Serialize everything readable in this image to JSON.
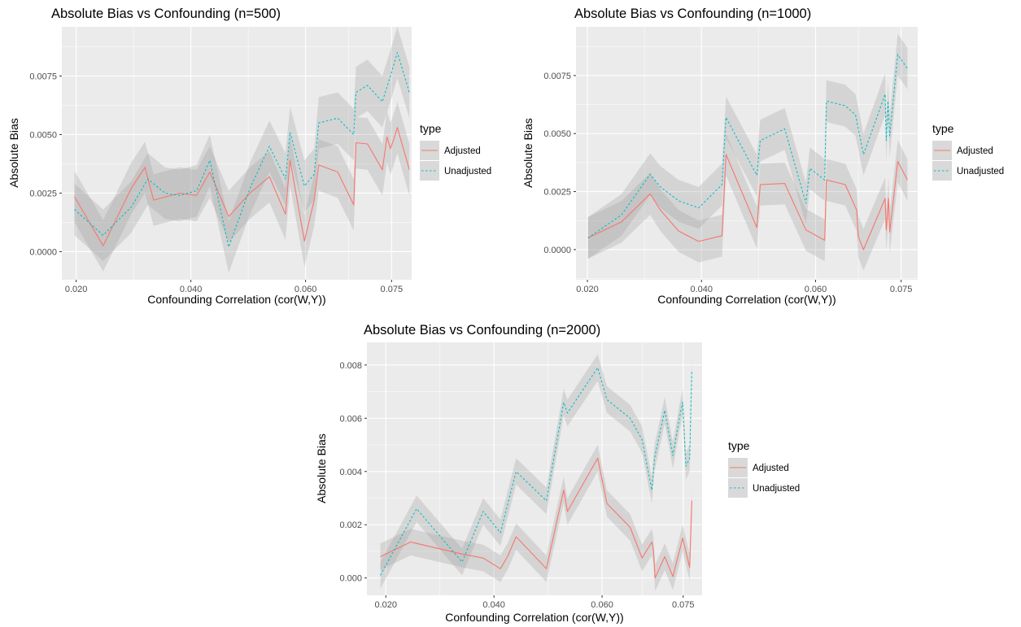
{
  "chart_data": [
    {
      "type": "line",
      "title": "Absolute Bias vs Confounding (n=500)",
      "xlabel": "Confounding Correlation (cor(W,Y))",
      "ylabel": "Absolute Bias",
      "xlim": [
        0.0175,
        0.0785
      ],
      "ylim": [
        -0.0012,
        0.0096
      ],
      "xticks": [
        0.02,
        0.04,
        0.06,
        0.075
      ],
      "xtick_labels": [
        "0.020",
        "0.040",
        "0.060",
        "0.075"
      ],
      "yticks": [
        0.0,
        0.0025,
        0.005,
        0.0075
      ],
      "ytick_labels": [
        "0.0000",
        "0.0025",
        "0.0050",
        "0.0075"
      ],
      "legend": {
        "title": "type",
        "position": "right"
      },
      "grid": true,
      "series": [
        {
          "name": "Adjusted",
          "color": "#F8766D",
          "dash": "solid",
          "band": 0.0011,
          "points": [
            [
              0.0197,
              0.00235
            ],
            [
              0.0247,
              0.00025
            ],
            [
              0.0296,
              0.0027
            ],
            [
              0.032,
              0.0036
            ],
            [
              0.0335,
              0.0022
            ],
            [
              0.038,
              0.0025
            ],
            [
              0.041,
              0.0024
            ],
            [
              0.0433,
              0.0034
            ],
            [
              0.0466,
              0.0015
            ],
            [
              0.0503,
              0.0025
            ],
            [
              0.0537,
              0.0032
            ],
            [
              0.0565,
              0.0016
            ],
            [
              0.0573,
              0.0039
            ],
            [
              0.0598,
              0.00045
            ],
            [
              0.0615,
              0.0022
            ],
            [
              0.0623,
              0.0037
            ],
            [
              0.0656,
              0.0034
            ],
            [
              0.0684,
              0.002
            ],
            [
              0.0688,
              0.00465
            ],
            [
              0.0708,
              0.0046
            ],
            [
              0.0734,
              0.0035
            ],
            [
              0.0742,
              0.0049
            ],
            [
              0.0748,
              0.0044
            ],
            [
              0.0754,
              0.0048
            ],
            [
              0.076,
              0.0053
            ],
            [
              0.0781,
              0.0035
            ]
          ]
        },
        {
          "name": "Unadjusted",
          "color": "#00BFC4",
          "dash": "dotted",
          "band": 0.0011,
          "points": [
            [
              0.0197,
              0.0018
            ],
            [
              0.0247,
              0.0007
            ],
            [
              0.0296,
              0.0019
            ],
            [
              0.0325,
              0.0031
            ],
            [
              0.0355,
              0.0025
            ],
            [
              0.038,
              0.0024
            ],
            [
              0.041,
              0.0026
            ],
            [
              0.0433,
              0.0039
            ],
            [
              0.0466,
              0.0002
            ],
            [
              0.0503,
              0.0027
            ],
            [
              0.0537,
              0.0045
            ],
            [
              0.0565,
              0.0031
            ],
            [
              0.0573,
              0.0051
            ],
            [
              0.0598,
              0.0028
            ],
            [
              0.0615,
              0.0033
            ],
            [
              0.0623,
              0.0055
            ],
            [
              0.0656,
              0.0057
            ],
            [
              0.0684,
              0.005
            ],
            [
              0.0688,
              0.0068
            ],
            [
              0.0708,
              0.0071
            ],
            [
              0.0734,
              0.0064
            ],
            [
              0.0748,
              0.0075
            ],
            [
              0.076,
              0.0085
            ],
            [
              0.0781,
              0.0068
            ]
          ]
        }
      ]
    },
    {
      "type": "line",
      "title": "Absolute Bias vs Confounding (n=1000)",
      "xlabel": "Confounding Correlation (cor(W,Y))",
      "ylabel": "Absolute Bias",
      "xlim": [
        0.018,
        0.0779
      ],
      "ylim": [
        -0.0013,
        0.0096
      ],
      "xticks": [
        0.02,
        0.04,
        0.06,
        0.075
      ],
      "xtick_labels": [
        "0.020",
        "0.040",
        "0.060",
        "0.075"
      ],
      "yticks": [
        0.0,
        0.0025,
        0.005,
        0.0075
      ],
      "ytick_labels": [
        "0.0000",
        "0.0025",
        "0.0050",
        "0.0075"
      ],
      "legend": {
        "title": "type",
        "position": "right"
      },
      "grid": true,
      "series": [
        {
          "name": "Adjusted",
          "color": "#F8766D",
          "dash": "solid",
          "band": 0.0009,
          "points": [
            [
              0.0201,
              0.0005
            ],
            [
              0.026,
              0.0012
            ],
            [
              0.031,
              0.0024
            ],
            [
              0.0328,
              0.0017
            ],
            [
              0.036,
              0.0008
            ],
            [
              0.0395,
              0.00035
            ],
            [
              0.0436,
              0.0006
            ],
            [
              0.0443,
              0.0041
            ],
            [
              0.0497,
              0.00095
            ],
            [
              0.0503,
              0.0028
            ],
            [
              0.0546,
              0.00285
            ],
            [
              0.0583,
              0.00085
            ],
            [
              0.0616,
              0.0004
            ],
            [
              0.0619,
              0.003
            ],
            [
              0.0652,
              0.0028
            ],
            [
              0.0672,
              0.0017
            ],
            [
              0.0675,
              0.00055
            ],
            [
              0.0684,
              0.0
            ],
            [
              0.0722,
              0.0022
            ],
            [
              0.0724,
              0.00085
            ],
            [
              0.0728,
              0.0022
            ],
            [
              0.073,
              0.00075
            ],
            [
              0.0744,
              0.0038
            ],
            [
              0.0761,
              0.003
            ]
          ]
        },
        {
          "name": "Unadjusted",
          "color": "#00BFC4",
          "dash": "dotted",
          "band": 0.0009,
          "points": [
            [
              0.0201,
              0.0005
            ],
            [
              0.026,
              0.0015
            ],
            [
              0.031,
              0.00325
            ],
            [
              0.0328,
              0.0027
            ],
            [
              0.036,
              0.0021
            ],
            [
              0.0395,
              0.0018
            ],
            [
              0.0436,
              0.0028
            ],
            [
              0.0443,
              0.0057
            ],
            [
              0.0497,
              0.0032
            ],
            [
              0.0503,
              0.0047
            ],
            [
              0.0546,
              0.0052
            ],
            [
              0.0583,
              0.002
            ],
            [
              0.059,
              0.0035
            ],
            [
              0.0616,
              0.003
            ],
            [
              0.0619,
              0.0064
            ],
            [
              0.0652,
              0.0062
            ],
            [
              0.067,
              0.0058
            ],
            [
              0.0684,
              0.0041
            ],
            [
              0.0722,
              0.0067
            ],
            [
              0.0724,
              0.0047
            ],
            [
              0.0727,
              0.0064
            ],
            [
              0.073,
              0.0049
            ],
            [
              0.0744,
              0.0084
            ],
            [
              0.0761,
              0.0078
            ]
          ]
        }
      ]
    },
    {
      "type": "line",
      "title": "Absolute Bias vs Confounding (n=2000)",
      "xlabel": "Confounding Correlation (cor(W,Y))",
      "ylabel": "Absolute Bias",
      "xlim": [
        0.0165,
        0.0785
      ],
      "ylim": [
        -0.00065,
        0.00885
      ],
      "xticks": [
        0.02,
        0.04,
        0.06,
        0.075
      ],
      "xtick_labels": [
        "0.020",
        "0.040",
        "0.060",
        "0.075"
      ],
      "yticks": [
        0.0,
        0.002,
        0.004,
        0.006,
        0.008
      ],
      "ytick_labels": [
        "0.000",
        "0.002",
        "0.004",
        "0.006",
        "0.008"
      ],
      "legend": {
        "title": "type",
        "position": "right"
      },
      "grid": true,
      "series": [
        {
          "name": "Adjusted",
          "color": "#F8766D",
          "dash": "solid",
          "band": 0.0005,
          "points": [
            [
              0.019,
              0.0008
            ],
            [
              0.0246,
              0.00135
            ],
            [
              0.0341,
              0.0009
            ],
            [
              0.038,
              0.00075
            ],
            [
              0.0412,
              0.00035
            ],
            [
              0.0425,
              0.0008
            ],
            [
              0.0441,
              0.00155
            ],
            [
              0.0497,
              0.00035
            ],
            [
              0.0529,
              0.0033
            ],
            [
              0.0536,
              0.0025
            ],
            [
              0.0592,
              0.0045
            ],
            [
              0.0609,
              0.0028
            ],
            [
              0.0652,
              0.0019
            ],
            [
              0.0674,
              0.00075
            ],
            [
              0.0692,
              0.00135
            ],
            [
              0.0695,
              0.00105
            ],
            [
              0.0698,
              0.0
            ],
            [
              0.0716,
              0.0008
            ],
            [
              0.0731,
              5e-05
            ],
            [
              0.0749,
              0.0015
            ],
            [
              0.0762,
              0.0004
            ],
            [
              0.0766,
              0.0029
            ]
          ]
        },
        {
          "name": "Unadjusted",
          "color": "#00BFC4",
          "dash": "dotted",
          "band": 0.0005,
          "points": [
            [
              0.019,
              0.0001
            ],
            [
              0.0257,
              0.0026
            ],
            [
              0.0341,
              0.0006
            ],
            [
              0.038,
              0.0025
            ],
            [
              0.0412,
              0.0017
            ],
            [
              0.0441,
              0.004
            ],
            [
              0.0497,
              0.0029
            ],
            [
              0.0529,
              0.0066
            ],
            [
              0.0536,
              0.0062
            ],
            [
              0.0592,
              0.0079
            ],
            [
              0.0609,
              0.0067
            ],
            [
              0.0652,
              0.006
            ],
            [
              0.0674,
              0.0052
            ],
            [
              0.0692,
              0.0033
            ],
            [
              0.0697,
              0.0045
            ],
            [
              0.0716,
              0.0063
            ],
            [
              0.0731,
              0.0046
            ],
            [
              0.0743,
              0.006
            ],
            [
              0.0749,
              0.0066
            ],
            [
              0.0755,
              0.0042
            ],
            [
              0.0762,
              0.0045
            ],
            [
              0.0766,
              0.0078
            ]
          ]
        }
      ]
    }
  ]
}
